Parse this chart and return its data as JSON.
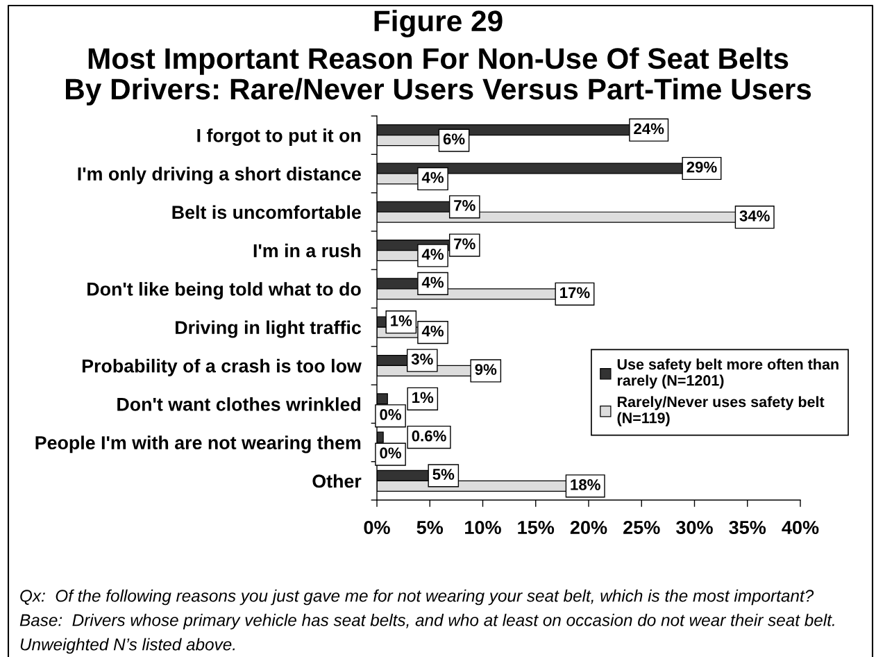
{
  "chart_data": {
    "type": "bar",
    "orientation": "horizontal",
    "title": "Figure 29",
    "subtitle": "Most Important Reason For Non-Use Of Seat Belts\nBy Drivers: Rare/Never Users Versus Part-Time Users",
    "categories": [
      "I forgot to put it on",
      "I'm only driving a short distance",
      "Belt is uncomfortable",
      "I'm in a rush",
      "Don't like being told what to do",
      "Driving in light traffic",
      "Probability of a crash is too low",
      "Don't want clothes wrinkled",
      "People I'm with are not wearing them",
      "Other"
    ],
    "series": [
      {
        "name": "Use safety belt more often than\nrarely (N=1201)",
        "color": "#333333",
        "values": [
          24,
          29,
          7,
          7,
          4,
          1,
          3,
          1,
          0.6,
          5
        ],
        "value_labels": [
          "24%",
          "29%",
          "7%",
          "7%",
          "4%",
          "1%",
          "3%",
          "1%",
          "0.6%",
          "5%"
        ]
      },
      {
        "name": "Rarely/Never uses safety belt\n(N=119)",
        "color": "#dddddd",
        "values": [
          6,
          4,
          34,
          4,
          17,
          4,
          9,
          0,
          0,
          18
        ],
        "value_labels": [
          "6%",
          "4%",
          "34%",
          "4%",
          "17%",
          "4%",
          "9%",
          "0%",
          "0%",
          "18%"
        ]
      }
    ],
    "xlim": [
      0,
      40
    ],
    "xticks": [
      {
        "value": 0,
        "label": "0%"
      },
      {
        "value": 5,
        "label": "5%"
      },
      {
        "value": 10,
        "label": "10%"
      },
      {
        "value": 15,
        "label": "15%"
      },
      {
        "value": 20,
        "label": "20%"
      },
      {
        "value": 25,
        "label": "25%"
      },
      {
        "value": 30,
        "label": "30%"
      },
      {
        "value": 35,
        "label": "35%"
      },
      {
        "value": 40,
        "label": "40%"
      }
    ],
    "legend": "right",
    "annotations": [
      "Qx:  Of the following reasons you just gave me for not wearing your seat belt, which is the most important?",
      "Base:  Drivers whose primary vehicle has seat belts, and who at least on occasion do not wear their seat belt.",
      "Unweighted N’s listed above."
    ]
  }
}
